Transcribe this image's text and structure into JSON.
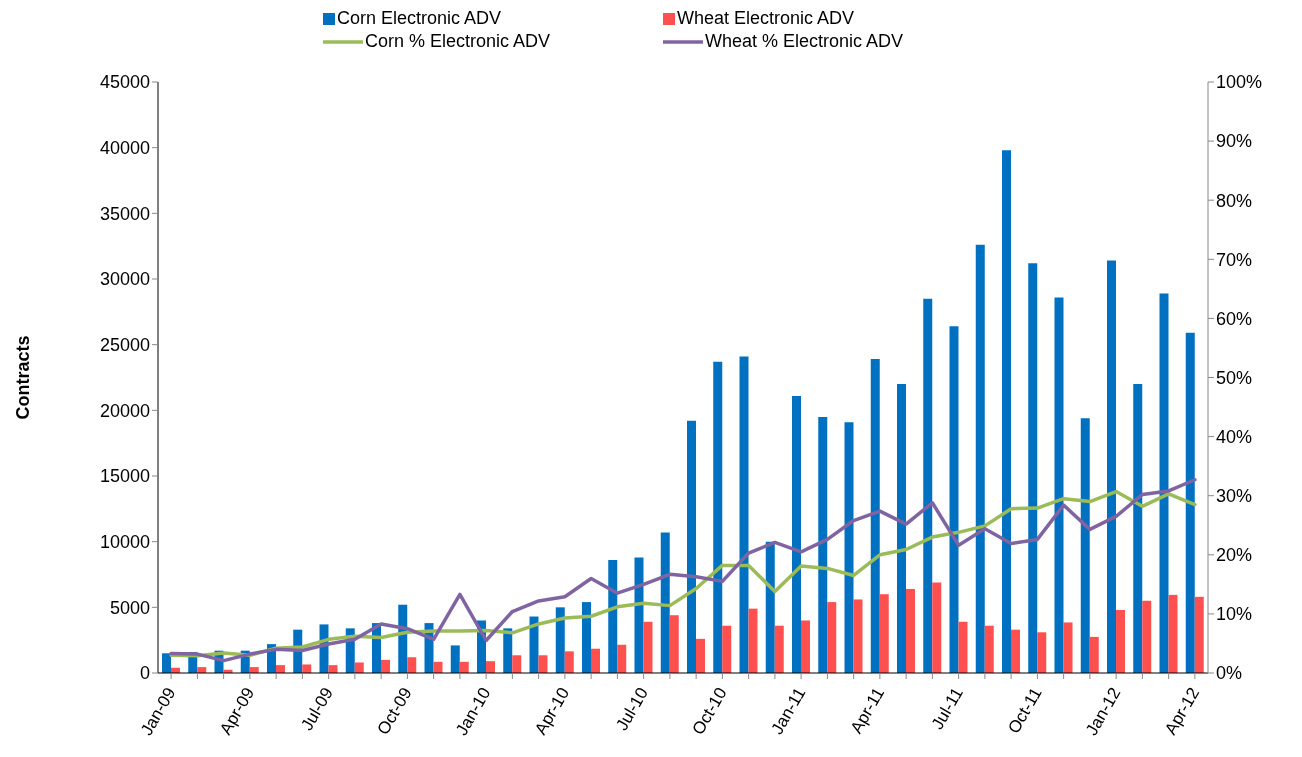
{
  "chart_data": {
    "type": "bar",
    "ylabel": "Contracts",
    "categories": [
      "Jan-09",
      null,
      null,
      "Apr-09",
      null,
      null,
      "Jul-09",
      null,
      null,
      "Oct-09",
      null,
      null,
      "Jan-10",
      null,
      null,
      "Apr-10",
      null,
      null,
      "Jul-10",
      null,
      null,
      "Oct-10",
      null,
      null,
      "Jan-11",
      null,
      null,
      "Apr-11",
      null,
      null,
      "Jul-11",
      null,
      null,
      "Oct-11",
      null,
      null,
      "Jan-12",
      null,
      null,
      "Apr-12"
    ],
    "series": [
      {
        "name": "Corn Electronic ADV",
        "color": "#0070c0",
        "values": [
          1500,
          1600,
          1700,
          1700,
          2200,
          3300,
          3700,
          3400,
          3800,
          5200,
          3800,
          2100,
          4000,
          3400,
          4300,
          5000,
          5400,
          8600,
          8800,
          10700,
          19200,
          23700,
          24100,
          10000,
          21100,
          19500,
          19100,
          23900,
          22000,
          28500,
          26400,
          32600,
          39800,
          31200,
          28600,
          19400,
          31400,
          22000,
          28900,
          25900
        ]
      },
      {
        "name": "Wheat Electronic ADV",
        "color": "#ff5050",
        "values": [
          400,
          450,
          250,
          450,
          600,
          650,
          600,
          800,
          1000,
          1200,
          850,
          850,
          900,
          1350,
          1350,
          1650,
          1850,
          2150,
          3900,
          4400,
          2600,
          3600,
          4900,
          3600,
          4000,
          5400,
          5600,
          6000,
          6400,
          6900,
          3900,
          3600,
          3300,
          3100,
          3850,
          2750,
          4800,
          5500,
          5950,
          5800
        ]
      },
      {
        "name": "Corn % Electronic ADV",
        "type": "line",
        "axis": "y2",
        "color": "#9bbb59",
        "values": [
          3.0,
          2.9,
          3.4,
          3.0,
          4.2,
          4.4,
          5.7,
          6.2,
          6.0,
          6.9,
          7.1,
          7.1,
          7.2,
          6.8,
          8.3,
          9.3,
          9.6,
          11.2,
          11.8,
          11.4,
          14.3,
          18.2,
          18.2,
          13.8,
          18.1,
          17.7,
          16.5,
          20.0,
          20.9,
          23.0,
          23.8,
          24.9,
          27.8,
          27.9,
          29.5,
          29.0,
          30.7,
          28.2,
          30.3,
          28.5
        ]
      },
      {
        "name": "Wheat % Electronic ADV",
        "type": "line",
        "axis": "y2",
        "color": "#8064a2",
        "values": [
          3.3,
          3.2,
          2.1,
          3.2,
          4.0,
          3.8,
          4.9,
          5.7,
          8.3,
          7.5,
          5.7,
          13.3,
          5.5,
          10.4,
          12.2,
          12.9,
          16.0,
          13.5,
          15.0,
          16.7,
          16.3,
          15.5,
          20.3,
          22.1,
          20.5,
          22.6,
          25.8,
          27.4,
          25.2,
          28.8,
          21.6,
          24.4,
          21.9,
          22.6,
          28.4,
          24.3,
          26.5,
          30.2,
          30.8,
          32.7
        ]
      }
    ],
    "ylim": [
      0,
      45000
    ],
    "yticks": [
      0,
      5000,
      10000,
      15000,
      20000,
      25000,
      30000,
      35000,
      40000,
      45000
    ],
    "y2lim": [
      0,
      100
    ],
    "y2ticks": [
      {
        "value": 0,
        "label": "0%"
      },
      {
        "value": 10,
        "label": "10%"
      },
      {
        "value": 20,
        "label": "20%"
      },
      {
        "value": 30,
        "label": "30%"
      },
      {
        "value": 40,
        "label": "40%"
      },
      {
        "value": 50,
        "label": "50%"
      },
      {
        "value": 60,
        "label": "60%"
      },
      {
        "value": 70,
        "label": "70%"
      },
      {
        "value": 80,
        "label": "80%"
      },
      {
        "value": 90,
        "label": "90%"
      },
      {
        "value": 100,
        "label": "100%"
      }
    ],
    "grid": false,
    "legend": "top",
    "marker": "none",
    "line_style": "solid"
  }
}
